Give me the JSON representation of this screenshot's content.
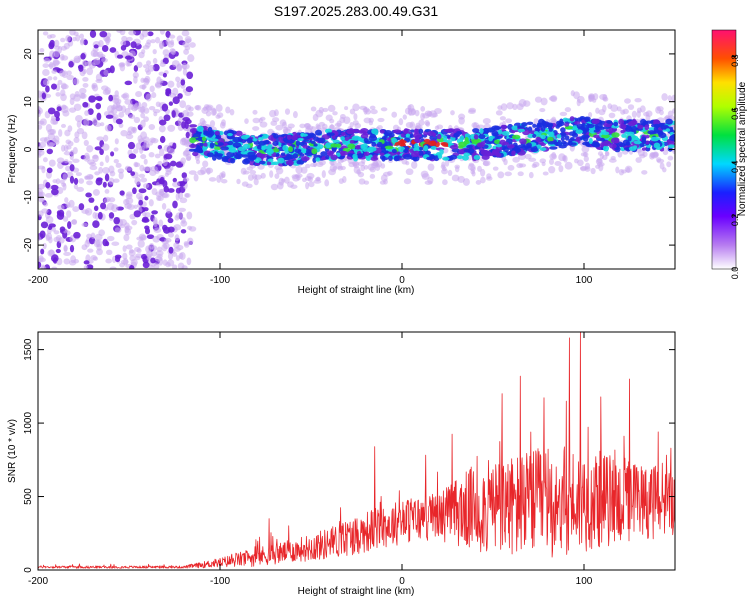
{
  "title": "S197.2025.283.00.49.G31",
  "colors": {
    "snr_line": "#e8262a",
    "spectro_low": "#c9a8ee",
    "spectro_mid": "#6a1fd6",
    "spectro_blue": "#1a2fe0",
    "spectro_cyan": "#19d6e0",
    "spectro_green": "#34e03a",
    "spectro_red": "#e02020",
    "axis": "#000000"
  },
  "chart_data": [
    {
      "type": "heatmap",
      "title": "S197.2025.283.00.49.G31",
      "xlabel": "Height of straight line (km)",
      "ylabel": "Frequency (Hz)",
      "xlim": [
        -200,
        150
      ],
      "ylim": [
        -25,
        25
      ],
      "x_ticks": [
        -200,
        -100,
        0,
        100
      ],
      "x_tick_labels": [
        "-200",
        "-100",
        "0",
        "100"
      ],
      "y_ticks": [
        -20,
        -10,
        0,
        10,
        20
      ],
      "y_tick_labels": [
        "-20",
        "-10",
        "0",
        "10",
        "20"
      ],
      "colorbar": {
        "label": "Normalized spectral amplitude",
        "range": [
          0.0,
          0.9
        ],
        "ticks": [
          0.0,
          0.2,
          0.4,
          0.6,
          0.8
        ],
        "tick_labels": [
          "0.0",
          "0.2",
          "0.4",
          "0.6",
          "0.8"
        ]
      },
      "features": {
        "noise_region_x": [
          -200,
          -115
        ],
        "ridge": [
          {
            "x": -115,
            "f": 2
          },
          {
            "x": -100,
            "f": 1
          },
          {
            "x": -80,
            "f": 0
          },
          {
            "x": -60,
            "f": 0
          },
          {
            "x": -40,
            "f": 1
          },
          {
            "x": -20,
            "f": 1
          },
          {
            "x": 0,
            "f": 1
          },
          {
            "x": 20,
            "f": 1
          },
          {
            "x": 40,
            "f": 1
          },
          {
            "x": 60,
            "f": 2
          },
          {
            "x": 80,
            "f": 3
          },
          {
            "x": 95,
            "f": 4
          },
          {
            "x": 110,
            "f": 3
          },
          {
            "x": 130,
            "f": 3
          },
          {
            "x": 150,
            "f": 3
          }
        ],
        "ridge_peak_amplitude_x": [
          -5,
          25
        ]
      }
    },
    {
      "type": "line",
      "xlabel": "Height of straight line (km)",
      "ylabel": "SNR (10 * v/v)",
      "xlim": [
        -200,
        150
      ],
      "ylim": [
        0,
        1620
      ],
      "x_ticks": [
        -200,
        -100,
        0,
        100
      ],
      "x_tick_labels": [
        "-200",
        "-100",
        "0",
        "100"
      ],
      "y_ticks": [
        0,
        500,
        1000,
        1500
      ],
      "y_tick_labels": [
        "0",
        "500",
        "1000",
        "1500"
      ],
      "series": [
        {
          "name": "SNR",
          "envelope": [
            {
              "x": -200,
              "base": 20,
              "amp": 15
            },
            {
              "x": -120,
              "base": 20,
              "amp": 15
            },
            {
              "x": -100,
              "base": 50,
              "amp": 60
            },
            {
              "x": -80,
              "base": 90,
              "amp": 120
            },
            {
              "x": -60,
              "base": 130,
              "amp": 140
            },
            {
              "x": -40,
              "base": 180,
              "amp": 200
            },
            {
              "x": -20,
              "base": 260,
              "amp": 260
            },
            {
              "x": 0,
              "base": 330,
              "amp": 280
            },
            {
              "x": 20,
              "base": 370,
              "amp": 300
            },
            {
              "x": 40,
              "base": 420,
              "amp": 550
            },
            {
              "x": 60,
              "base": 430,
              "amp": 650
            },
            {
              "x": 80,
              "base": 460,
              "amp": 700
            },
            {
              "x": 100,
              "base": 480,
              "amp": 650
            },
            {
              "x": 120,
              "base": 470,
              "amp": 550
            },
            {
              "x": 150,
              "base": 460,
              "amp": 400
            }
          ],
          "spikes": [
            {
              "x": -73,
              "y": 350
            },
            {
              "x": -15,
              "y": 840
            },
            {
              "x": 55,
              "y": 1200
            },
            {
              "x": 65,
              "y": 1320
            },
            {
              "x": 92,
              "y": 1580
            },
            {
              "x": 98,
              "y": 1620
            },
            {
              "x": 125,
              "y": 1300
            }
          ]
        }
      ]
    }
  ]
}
